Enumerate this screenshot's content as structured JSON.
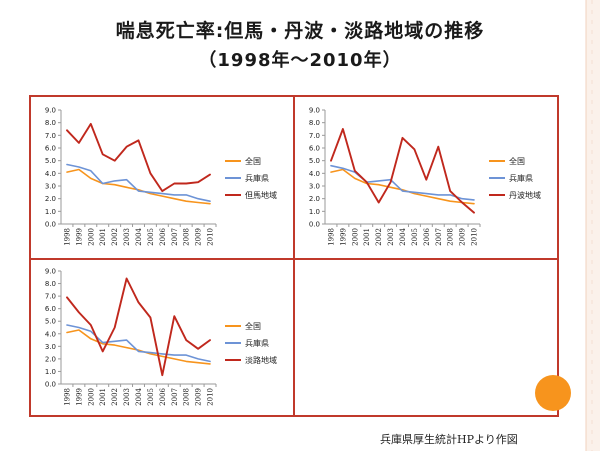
{
  "title": "喘息死亡率:但馬・丹波・淡路地域の推移",
  "subtitle": "（1998年～2010年）",
  "credit": "兵庫県厚生統計HPより作図",
  "colors": {
    "frame": "#c0392b",
    "zenkoku": "#f7941d",
    "hyogo": "#6d93d6",
    "region": "#c0281d",
    "accent_circle": "#f7941d"
  },
  "chart_data": [
    {
      "type": "line",
      "categories": [
        "1998",
        "1999",
        "2000",
        "2001",
        "2002",
        "2003",
        "2004",
        "2005",
        "2006",
        "2007",
        "2008",
        "2009",
        "2010"
      ],
      "ylim": [
        0,
        9
      ],
      "yticks": [
        "0.0",
        "1.0",
        "2.0",
        "3.0",
        "4.0",
        "5.0",
        "6.0",
        "7.0",
        "8.0",
        "9.0"
      ],
      "grid": false,
      "legend": "right",
      "series": [
        {
          "name": "全国",
          "values": [
            4.1,
            4.3,
            3.6,
            3.2,
            3.1,
            2.9,
            2.7,
            2.4,
            2.2,
            2.0,
            1.8,
            1.7,
            1.6
          ]
        },
        {
          "name": "兵庫県",
          "values": [
            4.7,
            4.5,
            4.2,
            3.2,
            3.4,
            3.5,
            2.6,
            2.5,
            2.4,
            2.3,
            2.3,
            2.0,
            1.8
          ]
        },
        {
          "name": "但馬地域",
          "values": [
            7.4,
            6.4,
            7.9,
            5.5,
            5.0,
            6.1,
            6.6,
            4.0,
            2.6,
            3.2,
            3.2,
            3.3,
            3.9
          ]
        }
      ]
    },
    {
      "type": "line",
      "categories": [
        "1998",
        "1999",
        "2000",
        "2001",
        "2002",
        "2003",
        "2004",
        "2005",
        "2006",
        "2007",
        "2008",
        "2009",
        "2010"
      ],
      "ylim": [
        0,
        9
      ],
      "yticks": [
        "0.0",
        "1.0",
        "2.0",
        "3.0",
        "4.0",
        "5.0",
        "6.0",
        "7.0",
        "8.0",
        "9.0"
      ],
      "grid": false,
      "legend": "right",
      "series": [
        {
          "name": "全国",
          "values": [
            4.1,
            4.3,
            3.6,
            3.2,
            3.1,
            2.9,
            2.7,
            2.4,
            2.2,
            2.0,
            1.8,
            1.7,
            1.6
          ]
        },
        {
          "name": "兵庫県",
          "values": [
            4.6,
            4.4,
            4.1,
            3.3,
            3.4,
            3.5,
            2.6,
            2.5,
            2.4,
            2.3,
            2.3,
            2.0,
            1.9
          ]
        },
        {
          "name": "丹波地域",
          "values": [
            5.0,
            7.5,
            4.2,
            3.3,
            1.7,
            3.3,
            6.8,
            5.9,
            3.5,
            6.1,
            2.6,
            1.7,
            0.9
          ]
        }
      ]
    },
    {
      "type": "line",
      "categories": [
        "1998",
        "1999",
        "2000",
        "2001",
        "2002",
        "2003",
        "2004",
        "2005",
        "2006",
        "2007",
        "2008",
        "2009",
        "2010"
      ],
      "ylim": [
        0,
        9
      ],
      "yticks": [
        "0.0",
        "1.0",
        "2.0",
        "3.0",
        "4.0",
        "5.0",
        "6.0",
        "7.0",
        "8.0",
        "9.0"
      ],
      "grid": false,
      "legend": "right",
      "series": [
        {
          "name": "全国",
          "values": [
            4.1,
            4.3,
            3.6,
            3.2,
            3.1,
            2.9,
            2.7,
            2.4,
            2.2,
            2.0,
            1.8,
            1.7,
            1.6
          ]
        },
        {
          "name": "兵庫県",
          "values": [
            4.7,
            4.5,
            4.2,
            3.3,
            3.4,
            3.5,
            2.6,
            2.5,
            2.4,
            2.3,
            2.3,
            2.0,
            1.8
          ]
        },
        {
          "name": "淡路地域",
          "values": [
            6.9,
            5.7,
            4.7,
            2.6,
            4.5,
            8.4,
            6.5,
            5.3,
            0.7,
            5.4,
            3.5,
            2.8,
            3.5
          ]
        }
      ]
    }
  ]
}
